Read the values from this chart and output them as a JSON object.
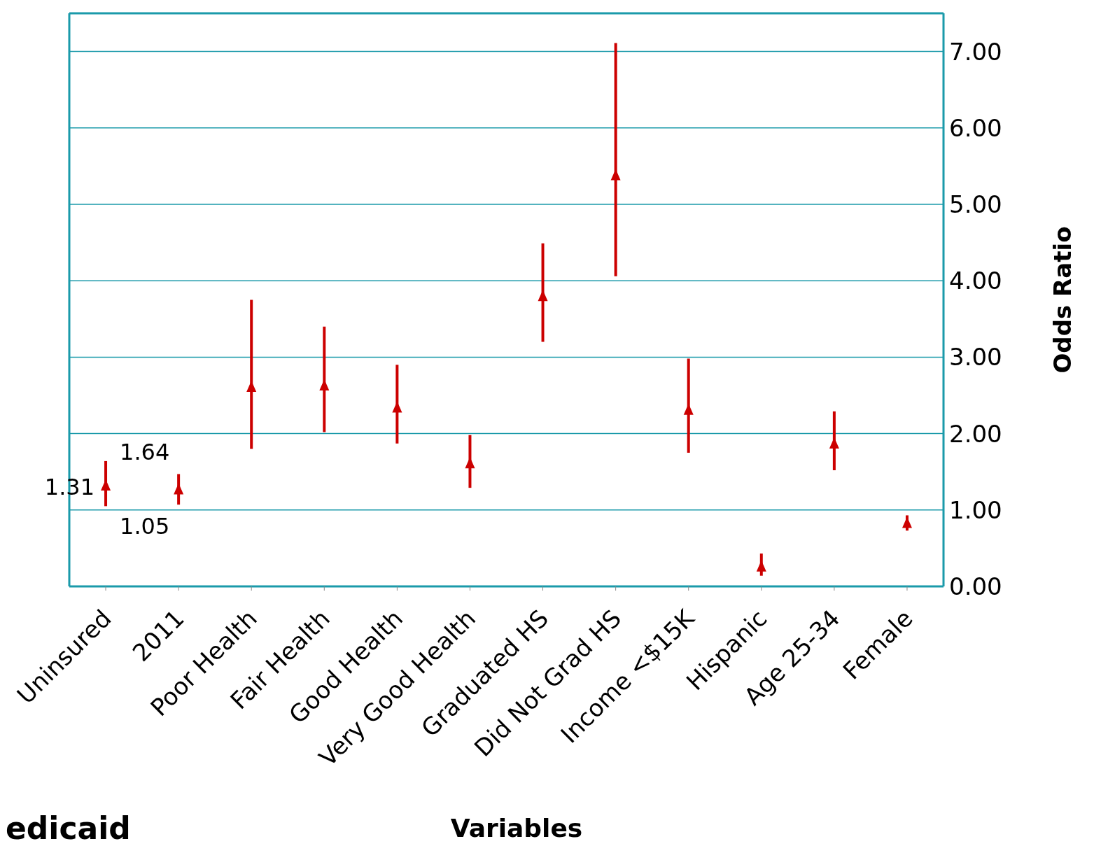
{
  "chart_data": {
    "type": "scatter",
    "xlabel": "Variables",
    "ylabel": "Odds Ratio",
    "categories": [
      "Uninsured",
      "2011",
      "Poor Health",
      "Fair Health",
      "Good Health",
      "Very Good Health",
      "Graduated HS",
      "Did Not Grad HS",
      "Income <$15K",
      "Hispanic",
      "Age 25-34",
      "Female"
    ],
    "series": [
      {
        "color": "#cc0000",
        "values": [
          1.31,
          1.26,
          2.6,
          2.62,
          2.33,
          1.6,
          3.79,
          5.37,
          2.3,
          0.25,
          1.86,
          0.82
        ],
        "errors": [
          [
            1.05,
            1.64
          ],
          [
            1.07,
            1.47
          ],
          [
            1.8,
            3.75
          ],
          [
            2.02,
            3.4
          ],
          [
            1.87,
            2.9
          ],
          [
            1.29,
            1.98
          ],
          [
            3.2,
            4.49
          ],
          [
            4.06,
            7.11
          ],
          [
            1.75,
            2.98
          ],
          [
            0.14,
            0.43
          ],
          [
            1.52,
            2.29
          ],
          [
            0.73,
            0.93
          ]
        ]
      }
    ],
    "ylim": [
      0,
      7.5
    ],
    "yticks": [
      {
        "value": 0,
        "label": "0.00"
      },
      {
        "value": 1,
        "label": "1.00"
      },
      {
        "value": 2,
        "label": "2.00"
      },
      {
        "value": 3,
        "label": "3.00"
      },
      {
        "value": 4,
        "label": "4.00"
      },
      {
        "value": 5,
        "label": "5.00"
      },
      {
        "value": 6,
        "label": "6.00"
      },
      {
        "value": 7,
        "label": "7.00"
      }
    ],
    "grid": "y",
    "legend": false,
    "marker": "triangle",
    "annotations": [
      {
        "text": "1.31",
        "x": "Uninsured",
        "y": 1.31
      },
      {
        "text": "1.64",
        "x": "Uninsured",
        "y": 1.64
      },
      {
        "text": "1.05",
        "x": "Uninsured",
        "y": 1.05
      },
      "edicaid"
    ]
  }
}
